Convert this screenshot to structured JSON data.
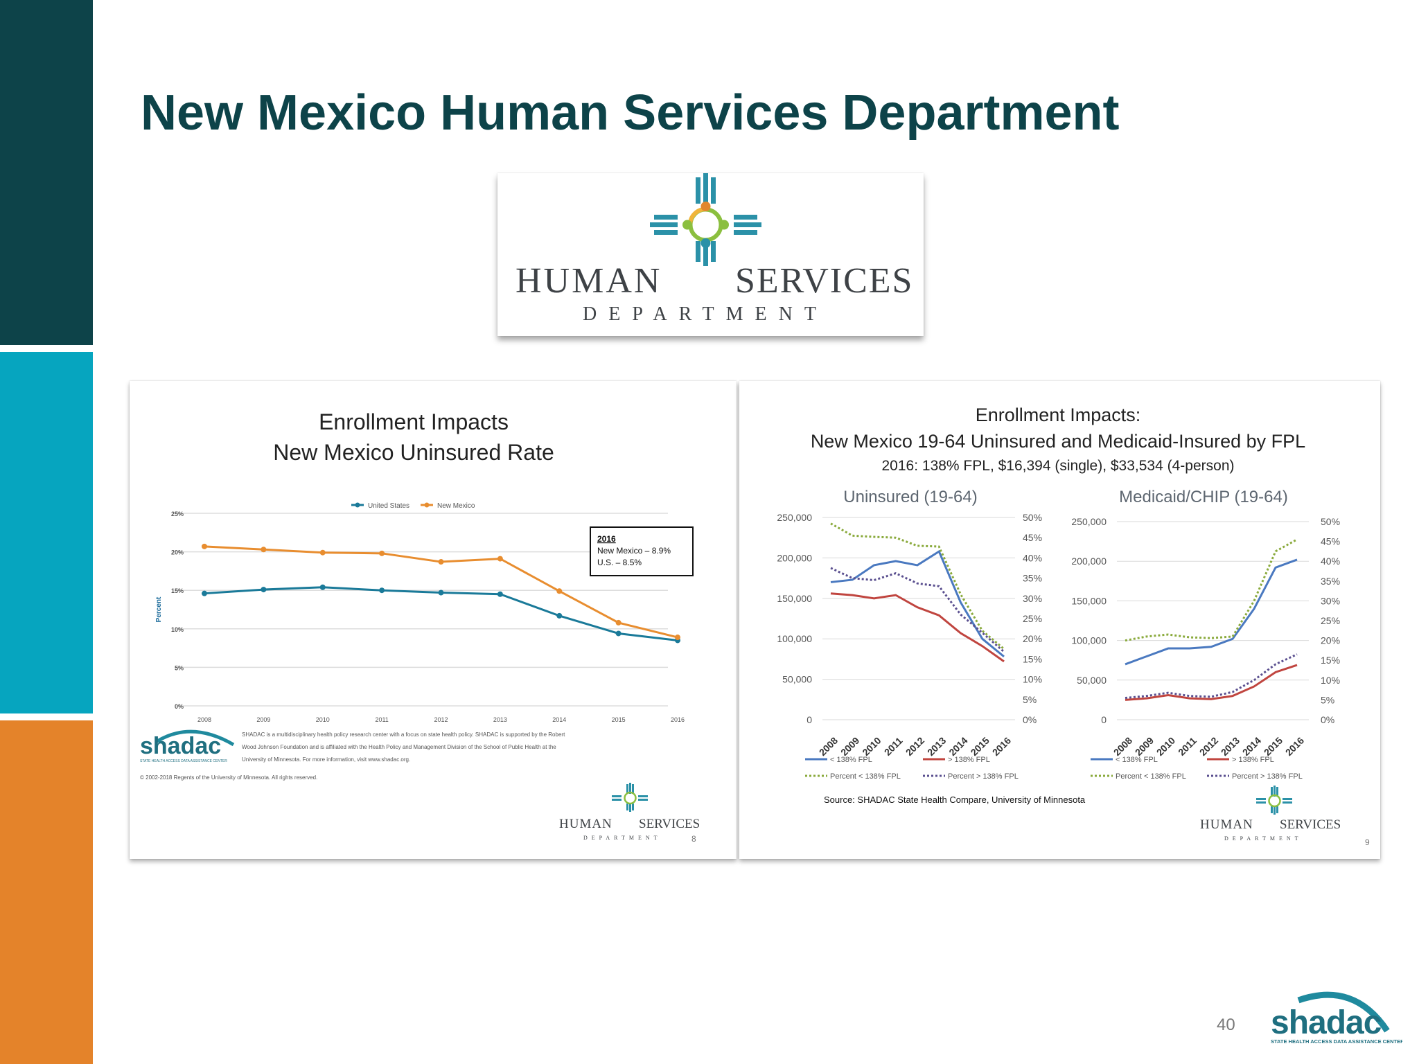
{
  "slide": {
    "title": "New Mexico Human Services Department",
    "page_number": "40",
    "colors": {
      "band_top": "#0d4349",
      "band_mid": "#06a5bf",
      "band_bottom": "#e4832a",
      "title": "#0d4349"
    }
  },
  "hsd_logo": {
    "line1_left": "HUMAN",
    "line1_right": "SERVICES",
    "line2": "DEPARTMENT"
  },
  "footer_logo": {
    "name": "shadac",
    "tagline": "STATE HEALTH ACCESS DATA ASSISTANCE CENTER"
  },
  "left_panel": {
    "title_line1": "Enrollment Impacts",
    "title_line2": "New Mexico Uninsured Rate",
    "callout": {
      "year": "2016",
      "line1": "New Mexico – 8.9%",
      "line2": "U.S. – 8.5%"
    },
    "shadac_note": {
      "line1": "SHADAC is a multidisciplinary health policy research center with a focus on state health policy. SHADAC is supported by the Robert",
      "line2": "Wood Johnson Foundation and is affiliated with the Health Policy and Management Division of the School of Public Health at the",
      "line3": "University of Minnesota. For more information, visit www.shadac.org.",
      "copyright": "© 2002-2018 Regents of the University of Minnesota. All rights reserved."
    },
    "page_number": "8"
  },
  "right_panel": {
    "title_line1": "Enrollment Impacts:",
    "title_line2": "New Mexico 19-64 Uninsured and Medicaid-Insured by FPL",
    "title_line3": "2016: 138% FPL, $16,394 (single), $33,534 (4-person)",
    "source": "Source: SHADAC State Health Compare, University of Minnesota",
    "page_number": "9"
  },
  "chart_data": [
    {
      "type": "line",
      "ylabel": "Percent",
      "x": [
        "2008",
        "2009",
        "2010",
        "2011",
        "2012",
        "2013",
        "2014",
        "2015",
        "2016"
      ],
      "ylim": [
        0,
        25
      ],
      "yticks": [
        "0%",
        "5%",
        "10%",
        "15%",
        "20%",
        "25%"
      ],
      "series": [
        {
          "name": "United States",
          "color": "#1a7a99",
          "values": [
            14.6,
            15.1,
            15.4,
            15.0,
            14.7,
            14.5,
            11.7,
            9.4,
            8.5
          ]
        },
        {
          "name": "New Mexico",
          "color": "#e88d2f",
          "values": [
            20.7,
            20.3,
            19.9,
            19.8,
            18.7,
            19.1,
            14.9,
            10.8,
            8.9
          ]
        }
      ],
      "legend": "top"
    },
    {
      "type": "line",
      "title": "Uninsured (19-64)",
      "x": [
        "2008",
        "2009",
        "2010",
        "2011",
        "2012",
        "2013",
        "2014",
        "2015",
        "2016"
      ],
      "ylim": [
        0,
        250000
      ],
      "yticks": [
        "0",
        "50,000",
        "100,000",
        "150,000",
        "200,000",
        "250,000"
      ],
      "y2lim": [
        0,
        50
      ],
      "y2ticks": [
        "0%",
        "5%",
        "10%",
        "15%",
        "20%",
        "25%",
        "30%",
        "35%",
        "40%",
        "45%",
        "50%"
      ],
      "series": [
        {
          "name": "< 138% FPL",
          "color": "#4a79c0",
          "axis": "left",
          "values": [
            170000,
            173000,
            191000,
            196000,
            191000,
            208000,
            145000,
            100000,
            78000
          ]
        },
        {
          "name": "> 138% FPL",
          "color": "#c0453f",
          "axis": "left",
          "values": [
            156000,
            154000,
            150000,
            154000,
            139000,
            129000,
            107000,
            91000,
            72000
          ]
        },
        {
          "name": "Percent < 138% FPL",
          "color": "#8aaa3c",
          "axis": "right",
          "values": [
            48.5,
            45.5,
            45.2,
            45.0,
            43.0,
            42.8,
            31.0,
            22.0,
            17.5
          ]
        },
        {
          "name": "Percent > 138% FPL",
          "color": "#5a4f8f",
          "axis": "right",
          "values": [
            37.5,
            35.0,
            34.5,
            36.2,
            33.7,
            33.0,
            26.0,
            21.5,
            16.8
          ]
        }
      ]
    },
    {
      "type": "line",
      "title": "Medicaid/CHIP (19-64)",
      "x": [
        "2008",
        "2009",
        "2010",
        "2011",
        "2012",
        "2013",
        "2014",
        "2015",
        "2016"
      ],
      "ylim": [
        0,
        250000
      ],
      "yticks": [
        "0",
        "50,000",
        "100,000",
        "150,000",
        "200,000",
        "250,000"
      ],
      "y2lim": [
        0,
        50
      ],
      "y2ticks": [
        "0%",
        "5%",
        "10%",
        "15%",
        "20%",
        "25%",
        "30%",
        "35%",
        "40%",
        "45%",
        "50%"
      ],
      "series": [
        {
          "name": "< 138% FPL",
          "color": "#4a79c0",
          "axis": "left",
          "values": [
            70000,
            80000,
            90000,
            90000,
            92000,
            102000,
            140000,
            192000,
            202000
          ]
        },
        {
          "name": "> 138% FPL",
          "color": "#c0453f",
          "axis": "left",
          "values": [
            25000,
            27000,
            31000,
            27000,
            26000,
            30000,
            42000,
            60000,
            69000
          ]
        },
        {
          "name": "Percent < 138% FPL",
          "color": "#8aaa3c",
          "axis": "right",
          "values": [
            20.0,
            21.0,
            21.5,
            20.8,
            20.6,
            21.0,
            30.0,
            42.5,
            45.5
          ]
        },
        {
          "name": "Percent > 138% FPL",
          "color": "#5a4f8f",
          "axis": "right",
          "values": [
            5.5,
            6.0,
            6.8,
            6.0,
            5.8,
            7.0,
            10.0,
            14.0,
            16.5
          ]
        }
      ]
    }
  ]
}
